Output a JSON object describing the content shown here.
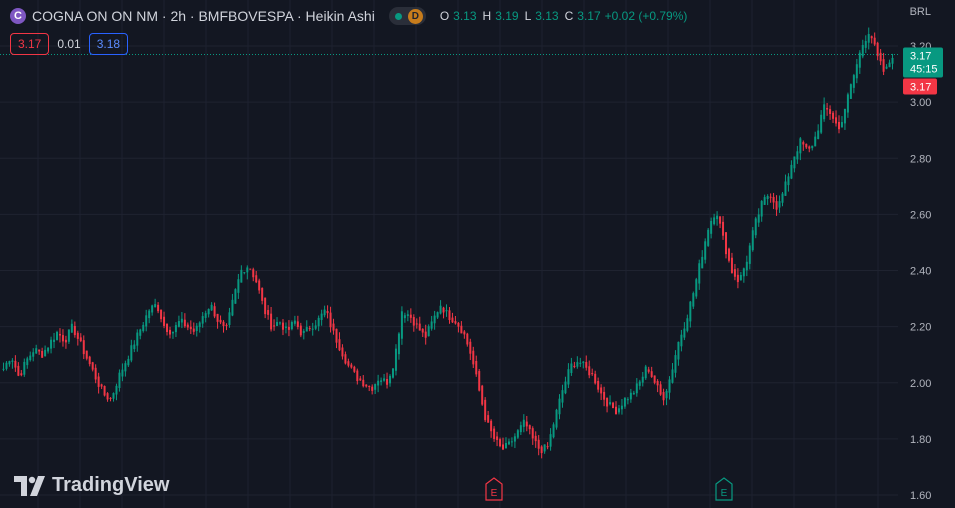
{
  "header": {
    "symbol_logo": "C",
    "title": "COGNA ON ON NM · 2h · BMFBOVESPA · Heikin Ashi",
    "status_badge": "D",
    "ohlc": [
      {
        "label": "O",
        "value": "3.13"
      },
      {
        "label": "H",
        "value": "3.19"
      },
      {
        "label": "L",
        "value": "3.13"
      },
      {
        "label": "C",
        "value": "3.17"
      }
    ],
    "change": "+0.02 (+0.79%)",
    "currency": "BRL"
  },
  "trade": {
    "sell": "3.17",
    "spread": "0.01",
    "buy": "3.18"
  },
  "brand": "TradingView",
  "colors": {
    "background": "#131722",
    "up": "#089981",
    "down": "#f23645",
    "grid": "#1f2330"
  },
  "chart_data": {
    "type": "candlestick",
    "style": "heikin-ashi",
    "ylim": [
      1.6,
      3.3
    ],
    "yticks": [
      "1.60",
      "1.80",
      "2.00",
      "2.20",
      "2.40",
      "2.60",
      "2.80",
      "3.00",
      "3.20"
    ],
    "last_price": "3.17",
    "countdown": "45:15",
    "bid_label": "3.17",
    "earnings_markers": [
      "E",
      "E"
    ],
    "series_close": [
      2.05,
      2.1,
      2.02,
      2.08,
      2.12,
      2.1,
      2.14,
      2.18,
      2.15,
      2.2,
      2.14,
      2.08,
      2.02,
      1.96,
      1.94,
      2.02,
      2.08,
      2.14,
      2.2,
      2.26,
      2.28,
      2.2,
      2.18,
      2.22,
      2.2,
      2.18,
      2.24,
      2.28,
      2.22,
      2.18,
      2.3,
      2.4,
      2.42,
      2.36,
      2.26,
      2.2,
      2.22,
      2.18,
      2.22,
      2.17,
      2.2,
      2.22,
      2.26,
      2.18,
      2.12,
      2.06,
      2.02,
      2.0,
      1.98,
      2.02,
      2.0,
      2.08,
      2.26,
      2.24,
      2.2,
      2.16,
      2.22,
      2.28,
      2.24,
      2.22,
      2.18,
      2.1,
      1.98,
      1.86,
      1.8,
      1.76,
      1.78,
      1.82,
      1.86,
      1.8,
      1.76,
      1.77,
      1.88,
      1.98,
      2.06,
      2.08,
      2.05,
      2.02,
      1.96,
      1.92,
      1.9,
      1.94,
      1.96,
      2.0,
      2.06,
      2.0,
      1.94,
      2.02,
      2.14,
      2.22,
      2.32,
      2.44,
      2.56,
      2.62,
      2.5,
      2.4,
      2.36,
      2.44,
      2.56,
      2.64,
      2.68,
      2.62,
      2.7,
      2.8,
      2.86,
      2.82,
      2.88,
      2.98,
      2.96,
      2.9,
      3.0,
      3.1,
      3.2,
      3.26,
      3.16,
      3.1,
      3.17
    ]
  }
}
